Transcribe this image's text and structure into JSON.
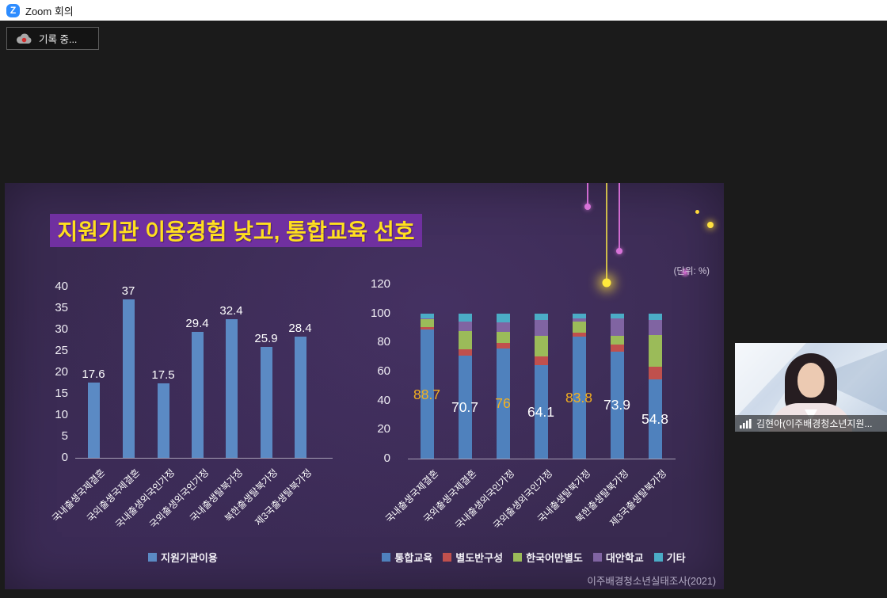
{
  "window": {
    "title": "Zoom 회의"
  },
  "toolbar": {
    "recording_label": "기록 중..."
  },
  "slide": {
    "title": "지원기관 이용경험 낮고, 통합교육 선호",
    "unit_label": "(단위: %)",
    "source": "이주배경청소년실태조사(2021)",
    "colors": {
      "background": "#392a50",
      "title_box": "#7030a0",
      "title_text": "#ffdf1f",
      "highlight_label": "#f5b11f"
    }
  },
  "chart_data": [
    {
      "type": "bar",
      "categories": [
        "국내출생국제결혼",
        "국외출생국제결혼",
        "국내출생외국인가정",
        "국외출생외국인가정",
        "국내출생탈북가정",
        "북한출생탈북가정",
        "제3국출생탈북가정"
      ],
      "values": [
        17.6,
        37,
        17.5,
        29.4,
        32.4,
        25.9,
        28.4
      ],
      "legend": "지원기관이용",
      "bar_color": "#5b8ac4",
      "ylim": [
        0,
        40
      ],
      "ytick_step": 5,
      "grid": false,
      "legend_position": "bottom"
    },
    {
      "type": "bar",
      "stacked": true,
      "categories": [
        "국내출생국제결혼",
        "국외출생국제결혼",
        "국내출생외국인가정",
        "국외출생외국인가정",
        "국내출생탈북가정",
        "북한출생탈북가정",
        "제3국출생탈북가정"
      ],
      "series": [
        {
          "name": "통합교육",
          "color": "#4f81bd",
          "values": [
            88.7,
            70.7,
            76,
            64.1,
            83.8,
            73.9,
            54.8
          ]
        },
        {
          "name": "별도반구성",
          "color": "#c0504d",
          "values": [
            2.0,
            4.8,
            3.5,
            6.5,
            3.0,
            4.5,
            8.4
          ]
        },
        {
          "name": "한국어만별도",
          "color": "#9bbb59",
          "values": [
            5.3,
            12.5,
            8.0,
            14.0,
            7.5,
            6.0,
            21.8
          ]
        },
        {
          "name": "대안학교",
          "color": "#8064a2",
          "values": [
            0.5,
            6.5,
            6.5,
            11.0,
            2.2,
            12.0,
            10.5
          ]
        },
        {
          "name": "기타",
          "color": "#4bacc6",
          "values": [
            3.5,
            5.5,
            6.0,
            4.4,
            3.5,
            3.6,
            4.5
          ]
        }
      ],
      "value_labels": {
        "series": "통합교육",
        "values": [
          "88.7",
          "70.7",
          "76",
          "64.1",
          "83.8",
          "73.9",
          "54.8"
        ],
        "highlighted": [
          true,
          false,
          true,
          false,
          true,
          false,
          false
        ]
      },
      "ylim": [
        0,
        120
      ],
      "ytick_step": 20,
      "grid": false,
      "legend_position": "bottom"
    }
  ],
  "webcam": {
    "participant_label": "김현아(이주배경청소년지원..."
  }
}
